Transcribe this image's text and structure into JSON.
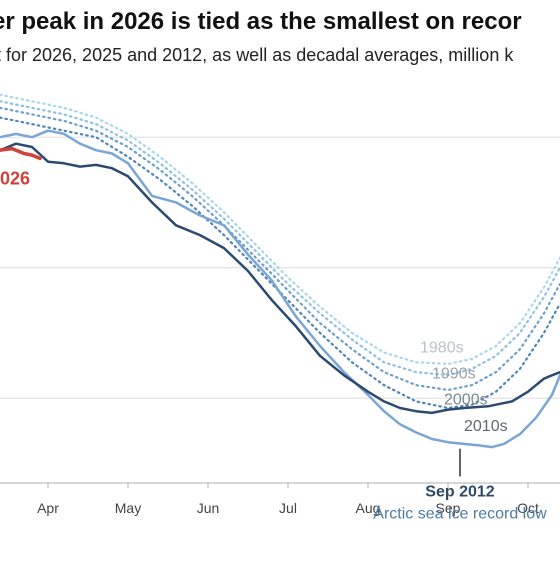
{
  "header": {
    "title": "er peak in 2026 is tied as the smallest on recor",
    "subtitle": "t for 2026, 2025 and 2012, as well as decadal averages, million k"
  },
  "chart_data": {
    "type": "line",
    "title": "er peak in 2026 is tied as the smallest on recor",
    "x_axis": {
      "unit": "month",
      "ticks": [
        {
          "label": "Apr",
          "value": 3.0
        },
        {
          "label": "May",
          "value": 4.0
        },
        {
          "label": "Jun",
          "value": 5.0
        },
        {
          "label": "Jul",
          "value": 6.0
        },
        {
          "label": "Aug",
          "value": 7.0
        },
        {
          "label": "Sep",
          "value": 8.0
        },
        {
          "label": "Oct",
          "value": 9.0
        }
      ],
      "range": [
        2.4,
        9.4
      ]
    },
    "y_axis": {
      "range": [
        3.4,
        15.6
      ],
      "gridlines": [
        14,
        10,
        6
      ]
    },
    "series": [
      {
        "name": "1980s",
        "style": "dotted",
        "color": "#a9d6ea",
        "x": [
          2.4,
          2.8,
          3.2,
          3.6,
          4.0,
          4.4,
          4.8,
          5.2,
          5.6,
          6.0,
          6.4,
          6.8,
          7.2,
          7.6,
          8.0,
          8.3,
          8.6,
          8.9,
          9.2,
          9.4
        ],
        "y": [
          15.3,
          15.1,
          14.9,
          14.6,
          14.1,
          13.4,
          12.6,
          11.7,
          10.7,
          9.7,
          8.8,
          8.0,
          7.4,
          7.1,
          7.05,
          7.2,
          7.6,
          8.3,
          9.4,
          10.3
        ]
      },
      {
        "name": "1990s",
        "style": "dotted",
        "color": "#8ec1e0",
        "x": [
          2.4,
          2.8,
          3.2,
          3.6,
          4.0,
          4.4,
          4.8,
          5.2,
          5.6,
          6.0,
          6.4,
          6.8,
          7.2,
          7.6,
          8.0,
          8.3,
          8.6,
          8.9,
          9.2,
          9.4
        ],
        "y": [
          15.1,
          14.9,
          14.7,
          14.4,
          13.9,
          13.2,
          12.4,
          11.5,
          10.5,
          9.5,
          8.6,
          7.8,
          7.1,
          6.8,
          6.7,
          6.9,
          7.3,
          8.0,
          9.1,
          10.0
        ]
      },
      {
        "name": "2000s",
        "style": "dotted",
        "color": "#6c9fcb",
        "x": [
          2.4,
          2.8,
          3.2,
          3.6,
          4.0,
          4.4,
          4.8,
          5.2,
          5.6,
          6.0,
          6.4,
          6.8,
          7.2,
          7.6,
          8.0,
          8.3,
          8.6,
          8.9,
          9.2,
          9.4
        ],
        "y": [
          14.9,
          14.7,
          14.5,
          14.2,
          13.7,
          13.0,
          12.2,
          11.3,
          10.3,
          9.3,
          8.3,
          7.5,
          6.8,
          6.4,
          6.25,
          6.4,
          6.8,
          7.5,
          8.6,
          9.5
        ]
      },
      {
        "name": "2010s",
        "style": "dotted",
        "color": "#4f85b8",
        "x": [
          2.4,
          2.8,
          3.2,
          3.6,
          4.0,
          4.4,
          4.8,
          5.2,
          5.6,
          6.0,
          6.4,
          6.8,
          7.2,
          7.6,
          8.0,
          8.3,
          8.6,
          8.9,
          9.2,
          9.4
        ],
        "y": [
          14.6,
          14.4,
          14.2,
          14.0,
          13.4,
          12.7,
          11.9,
          11.0,
          10.0,
          9.0,
          8.0,
          7.1,
          6.4,
          5.9,
          5.7,
          5.8,
          6.2,
          6.9,
          8.0,
          8.9
        ]
      },
      {
        "name": "2012",
        "style": "solid",
        "color": "#7aa6d6",
        "x": [
          2.4,
          2.6,
          2.8,
          3.0,
          3.2,
          3.4,
          3.6,
          3.8,
          4.0,
          4.3,
          4.6,
          4.9,
          5.2,
          5.5,
          5.8,
          6.1,
          6.4,
          6.7,
          7.0,
          7.2,
          7.4,
          7.6,
          7.8,
          8.0,
          8.2,
          8.4,
          8.55,
          8.7,
          8.9,
          9.1,
          9.3,
          9.4
        ],
        "y": [
          14.0,
          14.1,
          14.0,
          14.2,
          14.1,
          13.8,
          13.6,
          13.5,
          13.2,
          12.2,
          12.0,
          11.6,
          11.3,
          10.4,
          9.6,
          8.5,
          7.6,
          6.8,
          6.1,
          5.6,
          5.2,
          4.95,
          4.75,
          4.65,
          4.6,
          4.55,
          4.5,
          4.6,
          4.9,
          5.4,
          6.1,
          6.7
        ]
      },
      {
        "name": "2025",
        "style": "solid",
        "color": "#2b4a70",
        "x": [
          2.4,
          2.6,
          2.8,
          3.0,
          3.2,
          3.4,
          3.6,
          3.8,
          4.0,
          4.3,
          4.6,
          4.9,
          5.2,
          5.5,
          5.8,
          6.1,
          6.4,
          6.7,
          7.0,
          7.2,
          7.4,
          7.6,
          7.8,
          8.0,
          8.2,
          8.5,
          8.8,
          9.0,
          9.2,
          9.3,
          9.4
        ],
        "y": [
          13.6,
          13.8,
          13.7,
          13.25,
          13.2,
          13.1,
          13.15,
          13.05,
          12.8,
          12.0,
          11.3,
          11.0,
          10.6,
          9.9,
          9.0,
          8.2,
          7.3,
          6.7,
          6.2,
          5.9,
          5.7,
          5.6,
          5.55,
          5.65,
          5.7,
          5.75,
          5.9,
          6.2,
          6.6,
          6.7,
          6.8
        ]
      },
      {
        "name": "2026",
        "style": "solid",
        "color": "#d0413a",
        "x": [
          2.4,
          2.55,
          2.7,
          2.8,
          2.9
        ],
        "y": [
          13.6,
          13.65,
          13.5,
          13.45,
          13.35
        ]
      }
    ],
    "series_labels": [
      {
        "text": "1980s",
        "x": 7.65,
        "y": 7.4
      },
      {
        "text": "1990s",
        "x": 7.8,
        "y": 6.6
      },
      {
        "text": "2000s",
        "x": 7.95,
        "y": 5.8
      },
      {
        "text": "2010s",
        "x": 8.2,
        "y": 5.0
      },
      {
        "text": "026",
        "x": 2.4,
        "y": 12.55
      }
    ],
    "annotation": {
      "x": 8.15,
      "y_top": 4.45,
      "y_bottom": 3.6,
      "title": "Sep 2012",
      "text": "Arctic sea ice record low"
    }
  }
}
